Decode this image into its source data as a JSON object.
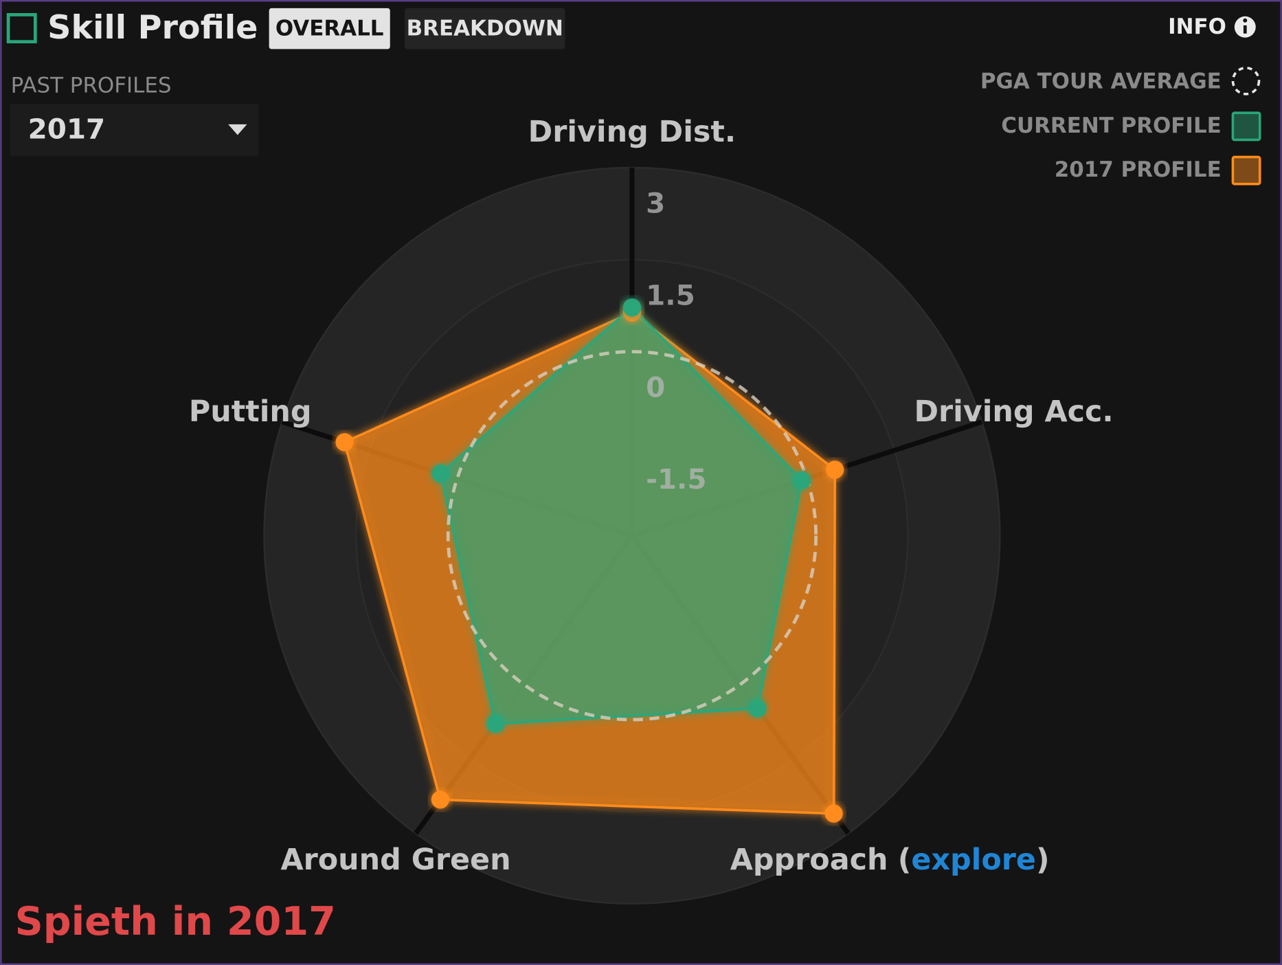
{
  "header": {
    "title": "Skill Profile",
    "tabs": [
      "OVERALL",
      "BREAKDOWN"
    ],
    "info": "INFO"
  },
  "past_profiles": {
    "label": "PAST PROFILES",
    "selected": "2017"
  },
  "caption": "Spieth in 2017",
  "chart_data": {
    "type": "radar",
    "categories": [
      "Driving Dist.",
      "Driving Acc.",
      "Approach",
      "Around Green",
      "Putting"
    ],
    "explore_link": [
      "(",
      "explore",
      ")"
    ],
    "reference": {
      "name": "PGA TOUR AVERAGE",
      "value": 0
    },
    "series": [
      {
        "name": "2017 PROFILE",
        "color": "#ff8c1a",
        "values": [
          0.64,
          0.48,
          2.6,
          2.32,
          1.93
        ]
      },
      {
        "name": "CURRENT PROFILE",
        "color": "#2aa67a",
        "values": [
          0.72,
          -0.09,
          0.48,
          0.79,
          0.28
        ]
      }
    ],
    "ylim": [
      -3,
      3
    ],
    "yticks": [
      -1.5,
      0,
      1.5,
      3
    ],
    "grid": true
  }
}
